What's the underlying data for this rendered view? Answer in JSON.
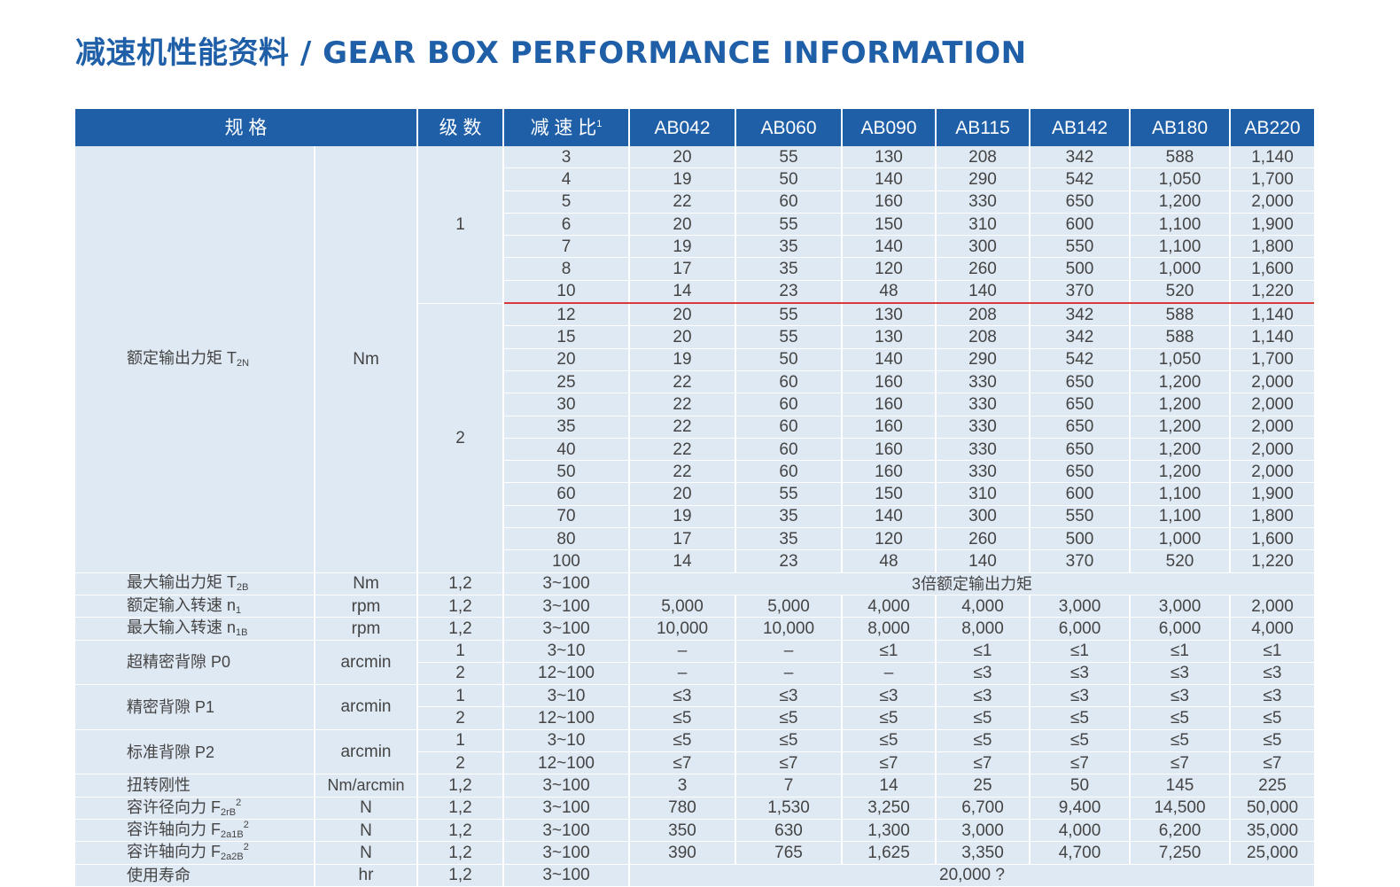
{
  "title": "减速机性能资料 / GEAR BOX PERFORMANCE INFORMATION",
  "header": {
    "spec": "规 格",
    "stage": "级 数",
    "ratio": "减 速 比",
    "ratio_sup": "1",
    "models": [
      "AB042",
      "AB060",
      "AB090",
      "AB115",
      "AB142",
      "AB180",
      "AB220"
    ]
  },
  "torque": {
    "label": "额定输出力矩 T",
    "label_sub": "2N",
    "unit": "Nm",
    "stage1": "1",
    "stage2": "2",
    "rows1": [
      {
        "ratio": "3",
        "vals": [
          "20",
          "55",
          "130",
          "208",
          "342",
          "588",
          "1,140"
        ]
      },
      {
        "ratio": "4",
        "vals": [
          "19",
          "50",
          "140",
          "290",
          "542",
          "1,050",
          "1,700"
        ]
      },
      {
        "ratio": "5",
        "vals": [
          "22",
          "60",
          "160",
          "330",
          "650",
          "1,200",
          "2,000"
        ]
      },
      {
        "ratio": "6",
        "vals": [
          "20",
          "55",
          "150",
          "310",
          "600",
          "1,100",
          "1,900"
        ]
      },
      {
        "ratio": "7",
        "vals": [
          "19",
          "35",
          "140",
          "300",
          "550",
          "1,100",
          "1,800"
        ]
      },
      {
        "ratio": "8",
        "vals": [
          "17",
          "35",
          "120",
          "260",
          "500",
          "1,000",
          "1,600"
        ]
      },
      {
        "ratio": "10",
        "vals": [
          "14",
          "23",
          "48",
          "140",
          "370",
          "520",
          "1,220"
        ]
      }
    ],
    "rows2": [
      {
        "ratio": "12",
        "vals": [
          "20",
          "55",
          "130",
          "208",
          "342",
          "588",
          "1,140"
        ]
      },
      {
        "ratio": "15",
        "vals": [
          "20",
          "55",
          "130",
          "208",
          "342",
          "588",
          "1,140"
        ]
      },
      {
        "ratio": "20",
        "vals": [
          "19",
          "50",
          "140",
          "290",
          "542",
          "1,050",
          "1,700"
        ]
      },
      {
        "ratio": "25",
        "vals": [
          "22",
          "60",
          "160",
          "330",
          "650",
          "1,200",
          "2,000"
        ]
      },
      {
        "ratio": "30",
        "vals": [
          "22",
          "60",
          "160",
          "330",
          "650",
          "1,200",
          "2,000"
        ]
      },
      {
        "ratio": "35",
        "vals": [
          "22",
          "60",
          "160",
          "330",
          "650",
          "1,200",
          "2,000"
        ]
      },
      {
        "ratio": "40",
        "vals": [
          "22",
          "60",
          "160",
          "330",
          "650",
          "1,200",
          "2,000"
        ]
      },
      {
        "ratio": "50",
        "vals": [
          "22",
          "60",
          "160",
          "330",
          "650",
          "1,200",
          "2,000"
        ]
      },
      {
        "ratio": "60",
        "vals": [
          "20",
          "55",
          "150",
          "310",
          "600",
          "1,100",
          "1,900"
        ]
      },
      {
        "ratio": "70",
        "vals": [
          "19",
          "35",
          "140",
          "300",
          "550",
          "1,100",
          "1,800"
        ]
      },
      {
        "ratio": "80",
        "vals": [
          "17",
          "35",
          "120",
          "260",
          "500",
          "1,000",
          "1,600"
        ]
      },
      {
        "ratio": "100",
        "vals": [
          "14",
          "23",
          "48",
          "140",
          "370",
          "520",
          "1,220"
        ]
      }
    ]
  },
  "max_torque": {
    "label": "最大输出力矩 T",
    "label_sub": "2B",
    "unit": "Nm",
    "stage": "1,2",
    "ratio": "3~100",
    "note": "3倍额定输出力矩"
  },
  "rated_speed": {
    "label": "额定输入转速 n",
    "label_sub": "1",
    "unit": "rpm",
    "stage": "1,2",
    "ratio": "3~100",
    "vals": [
      "5,000",
      "5,000",
      "4,000",
      "4,000",
      "3,000",
      "3,000",
      "2,000"
    ]
  },
  "max_speed": {
    "label": "最大输入转速 n",
    "label_sub": "1B",
    "unit": "rpm",
    "stage": "1,2",
    "ratio": "3~100",
    "vals": [
      "10,000",
      "10,000",
      "8,000",
      "8,000",
      "6,000",
      "6,000",
      "4,000"
    ]
  },
  "backlash": [
    {
      "label": "超精密背隙 P0",
      "unit": "arcmin",
      "rows": [
        {
          "stage": "1",
          "ratio": "3~10",
          "vals": [
            "–",
            "–",
            "≤1",
            "≤1",
            "≤1",
            "≤1",
            "≤1"
          ]
        },
        {
          "stage": "2",
          "ratio": "12~100",
          "vals": [
            "–",
            "–",
            "–",
            "≤3",
            "≤3",
            "≤3",
            "≤3"
          ]
        }
      ]
    },
    {
      "label": "精密背隙 P1",
      "unit": "arcmin",
      "rows": [
        {
          "stage": "1",
          "ratio": "3~10",
          "vals": [
            "≤3",
            "≤3",
            "≤3",
            "≤3",
            "≤3",
            "≤3",
            "≤3"
          ]
        },
        {
          "stage": "2",
          "ratio": "12~100",
          "vals": [
            "≤5",
            "≤5",
            "≤5",
            "≤5",
            "≤5",
            "≤5",
            "≤5"
          ]
        }
      ]
    },
    {
      "label": "标准背隙 P2",
      "unit": "arcmin",
      "rows": [
        {
          "stage": "1",
          "ratio": "3~10",
          "vals": [
            "≤5",
            "≤5",
            "≤5",
            "≤5",
            "≤5",
            "≤5",
            "≤5"
          ]
        },
        {
          "stage": "2",
          "ratio": "12~100",
          "vals": [
            "≤7",
            "≤7",
            "≤7",
            "≤7",
            "≤7",
            "≤7",
            "≤7"
          ]
        }
      ]
    }
  ],
  "stiffness": {
    "label": "扭转刚性",
    "unit": "Nm/arcmin",
    "stage": "1,2",
    "ratio": "3~100",
    "vals": [
      "3",
      "7",
      "14",
      "25",
      "50",
      "145",
      "225"
    ]
  },
  "forces": [
    {
      "label": "容许径向力 F",
      "label_sub": "2rB",
      "label_sup": "2",
      "unit": "N",
      "stage": "1,2",
      "ratio": "3~100",
      "vals": [
        "780",
        "1,530",
        "3,250",
        "6,700",
        "9,400",
        "14,500",
        "50,000"
      ]
    },
    {
      "label": "容许轴向力 F",
      "label_sub": "2a1B",
      "label_sup": "2",
      "unit": "N",
      "stage": "1,2",
      "ratio": "3~100",
      "vals": [
        "350",
        "630",
        "1,300",
        "3,000",
        "4,000",
        "6,200",
        "35,000"
      ]
    },
    {
      "label": "容许轴向力 F",
      "label_sub": "2a2B",
      "label_sup": "2",
      "unit": "N",
      "stage": "1,2",
      "ratio": "3~100",
      "vals": [
        "390",
        "765",
        "1,625",
        "3,350",
        "4,700",
        "7,250",
        "25,000"
      ]
    }
  ],
  "life": {
    "label": "使用寿命",
    "unit": "hr",
    "stage": "1,2",
    "ratio": "3~100",
    "note": "20,000 ?"
  }
}
